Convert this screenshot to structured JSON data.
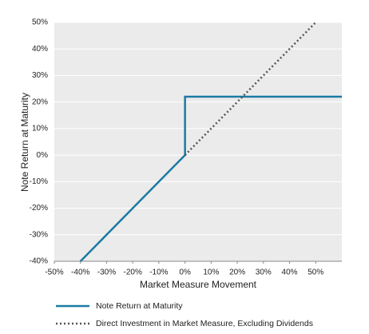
{
  "chart_data": {
    "type": "line",
    "x_label": "Market Measure Movement",
    "y_label": "Note Return at Maturity",
    "xlim": [
      -50,
      60
    ],
    "ylim": [
      -40,
      50
    ],
    "xticks": [
      {
        "value": -50,
        "label": "-50%"
      },
      {
        "value": -40,
        "label": "-40%"
      },
      {
        "value": -30,
        "label": "-30%"
      },
      {
        "value": -20,
        "label": "-20%"
      },
      {
        "value": -10,
        "label": "-10%"
      },
      {
        "value": 0,
        "label": "0%"
      },
      {
        "value": 10,
        "label": "10%"
      },
      {
        "value": 20,
        "label": "20%"
      },
      {
        "value": 30,
        "label": "30%"
      },
      {
        "value": 40,
        "label": "40%"
      },
      {
        "value": 50,
        "label": "50%"
      }
    ],
    "yticks": [
      {
        "value": -40,
        "label": "-40%"
      },
      {
        "value": -30,
        "label": "-30%"
      },
      {
        "value": -20,
        "label": "-20%"
      },
      {
        "value": -10,
        "label": "-10%"
      },
      {
        "value": 0,
        "label": "0%"
      },
      {
        "value": 10,
        "label": "10%"
      },
      {
        "value": 20,
        "label": "20%"
      },
      {
        "value": 30,
        "label": "30%"
      },
      {
        "value": 40,
        "label": "40%"
      },
      {
        "value": 50,
        "label": "50%"
      }
    ],
    "grid": true,
    "series": [
      {
        "name": "Note Return at Maturity",
        "color": "#1b7ba3",
        "dash": false,
        "x": [
          -40,
          0,
          0,
          60
        ],
        "values": [
          -40,
          0,
          22,
          22
        ]
      },
      {
        "name": "Direct Investment in Market Measure, Excluding Dividends",
        "color": "#555555",
        "dash": true,
        "x": [
          0,
          50
        ],
        "values": [
          0,
          50
        ]
      }
    ]
  }
}
